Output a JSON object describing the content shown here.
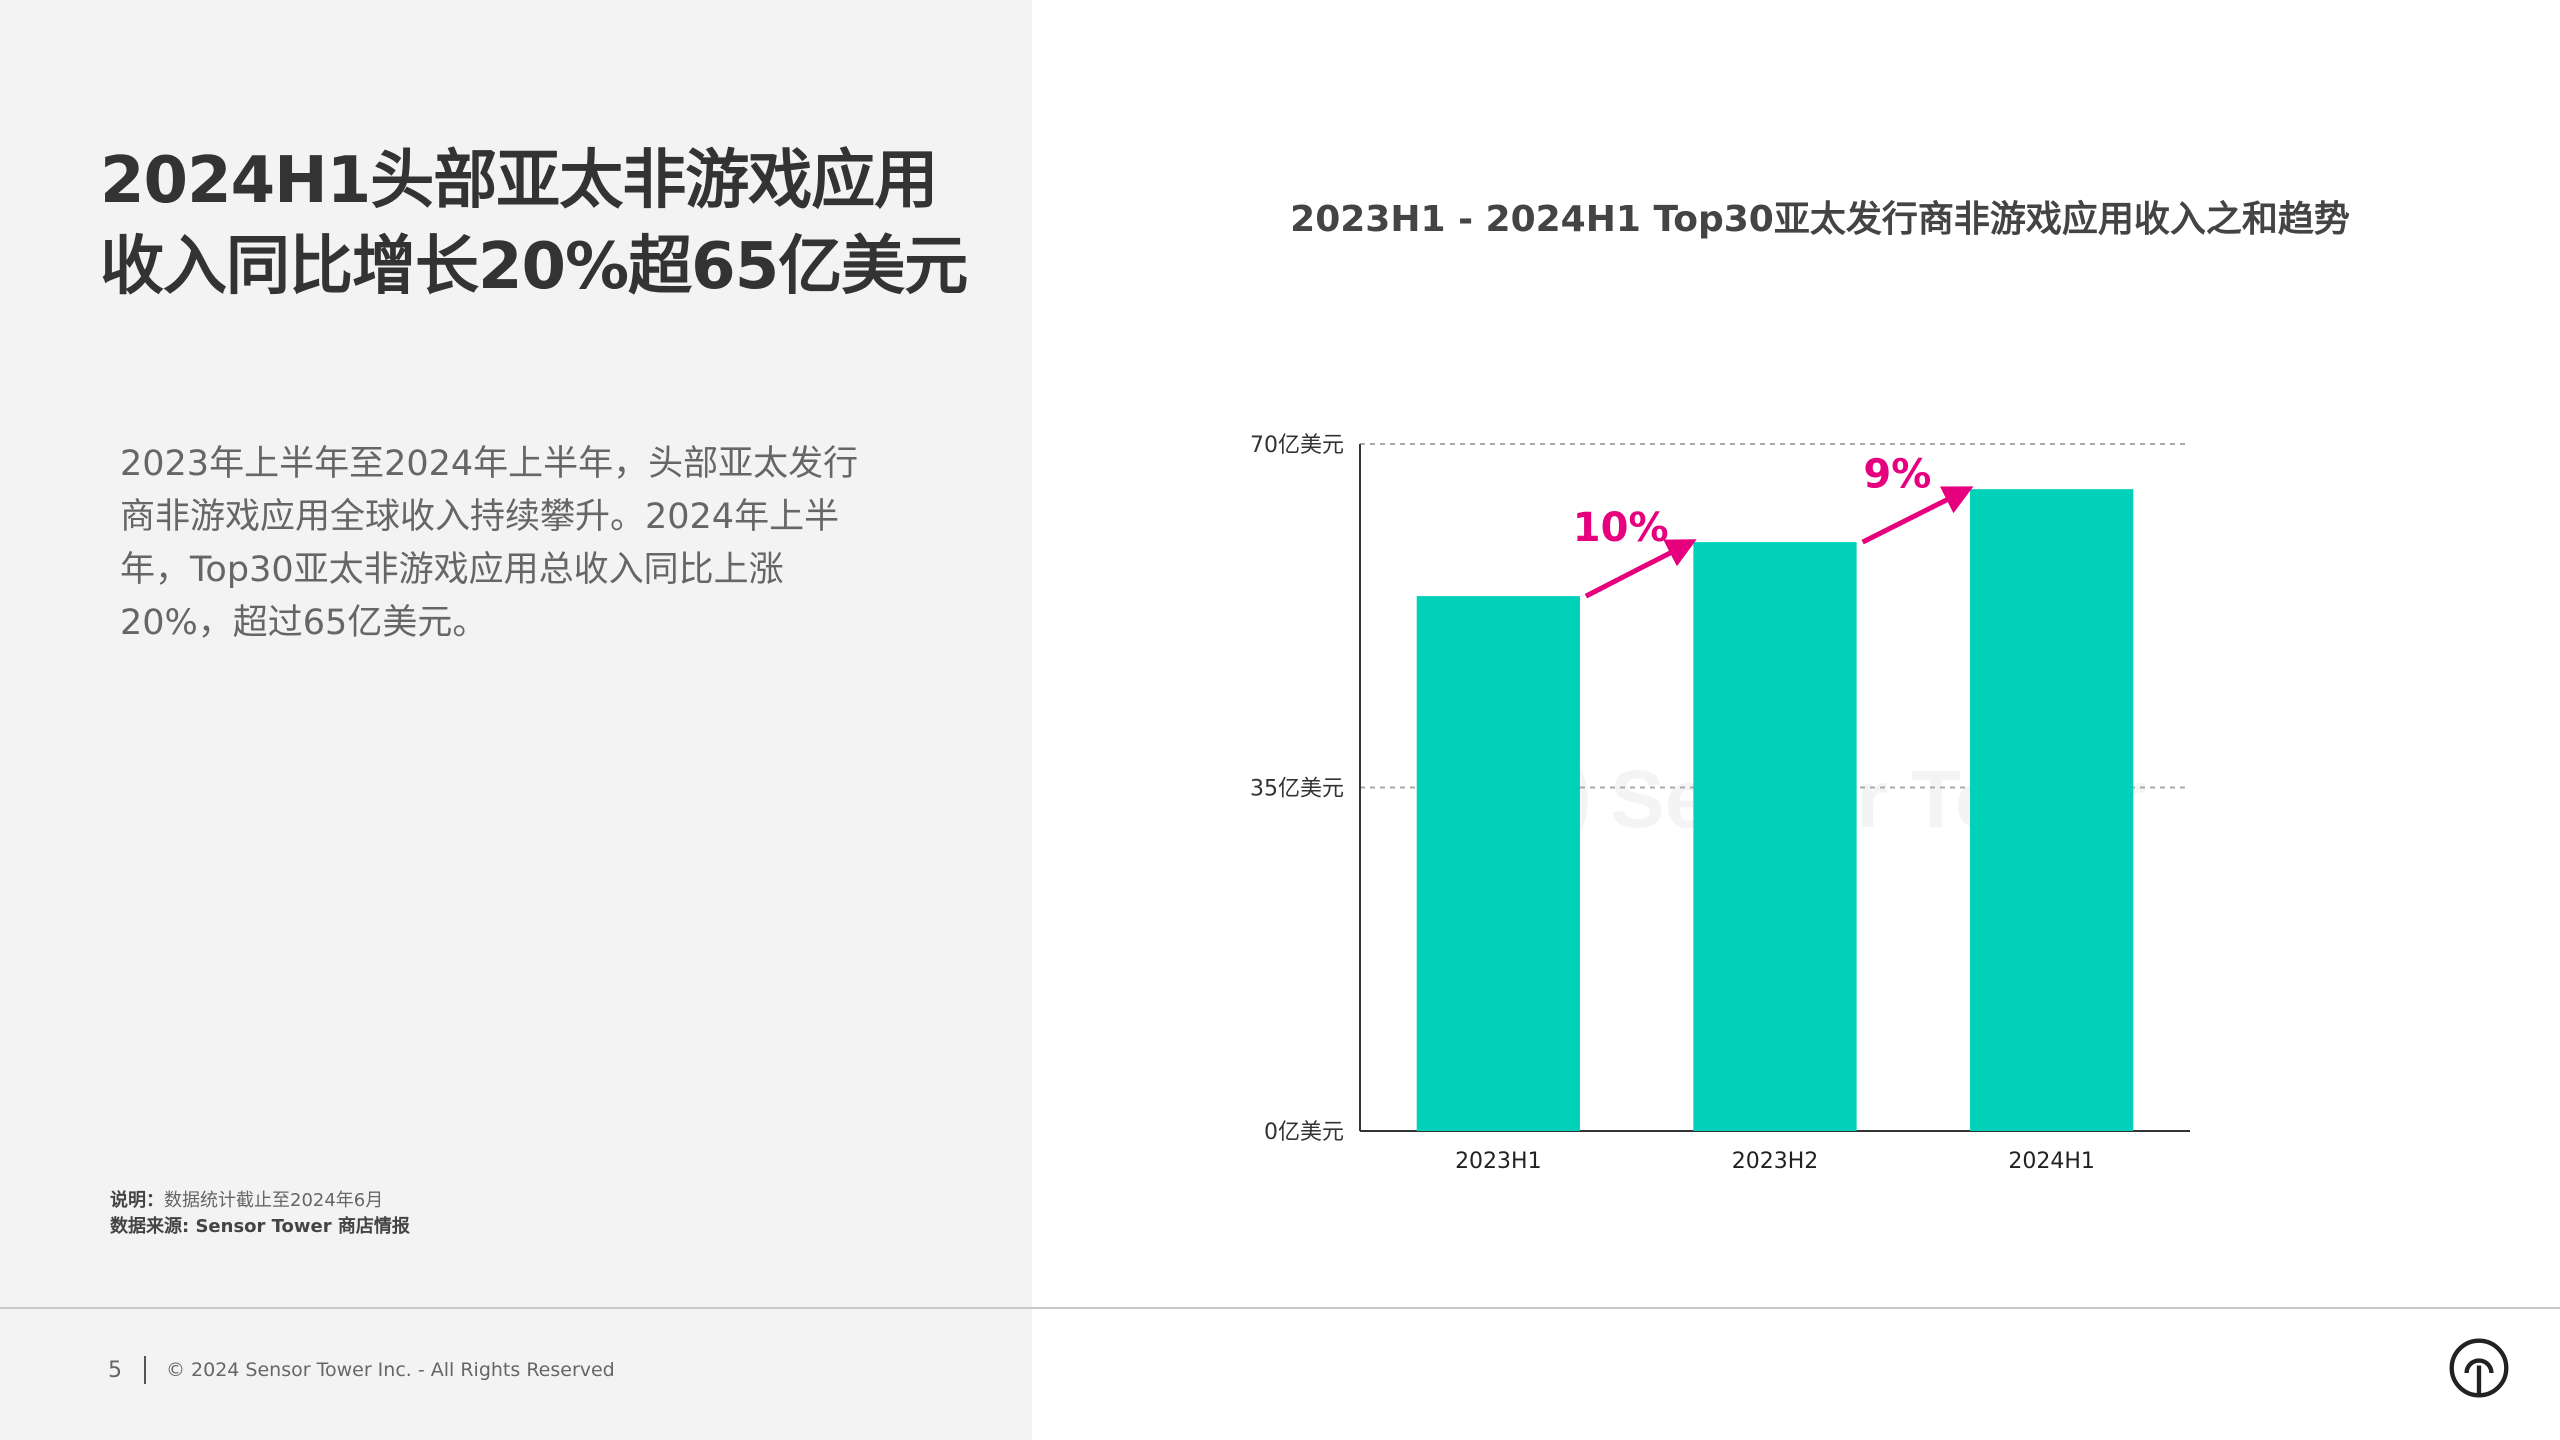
{
  "slide": {
    "title_line1": "2024H1头部亚太非游戏应用",
    "title_line2": "收入同比增长20%超65亿美元",
    "body": "2023年上半年至2024年上半年，头部亚太发行商非游戏应用全球收入持续攀升。2024年上半年，Top30亚太非游戏应用总收入同比上涨20%，超过65亿美元。",
    "note_label": "说明：",
    "note_text": "数据统计截止至2024年6月",
    "source": "数据来源: Sensor Tower 商店情报",
    "page_number": "5",
    "copyright": "© 2024 Sensor Tower Inc. - All Rights Reserved",
    "watermark": "Sensor Tower"
  },
  "colors": {
    "bar": "#00D1B8",
    "growth": "#E6007E",
    "gridline": "#aaaaaa",
    "axis": "#333333",
    "left_panel": "#f3f3f3"
  },
  "chart_data": {
    "type": "bar",
    "title": "2023H1 - 2024H1 Top30亚太发行商非游戏应用收入之和趋势",
    "categories": [
      "2023H1",
      "2023H2",
      "2024H1"
    ],
    "values": [
      54.5,
      60,
      65.4
    ],
    "ylim": [
      0,
      70
    ],
    "yticks": [
      0,
      35,
      70
    ],
    "ytick_labels": [
      "0亿美元",
      "35亿美元",
      "70亿美元"
    ],
    "grid": true,
    "annotations": [
      {
        "text": "10%",
        "from": "2023H1",
        "to": "2023H2"
      },
      {
        "text": "9%",
        "from": "2023H2",
        "to": "2024H1"
      }
    ]
  }
}
